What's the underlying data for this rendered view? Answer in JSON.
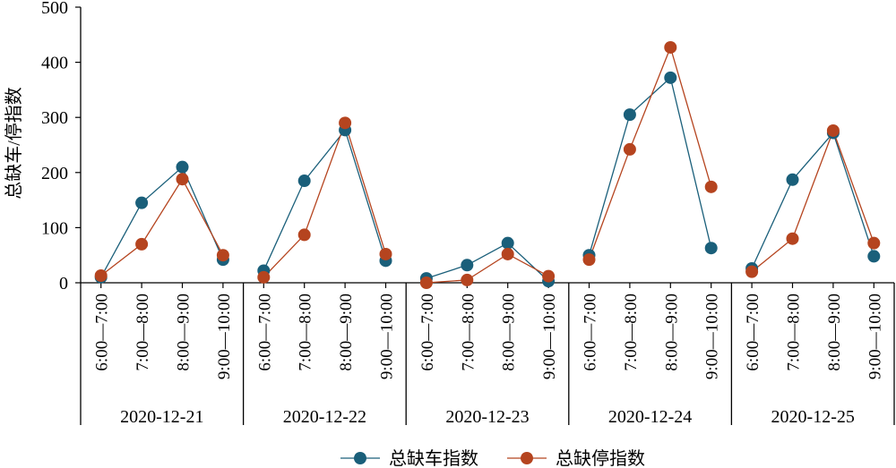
{
  "chart_data": {
    "type": "line",
    "ylabel": "总缺车/停指数",
    "ylim": [
      0,
      500
    ],
    "yticks": [
      0,
      100,
      200,
      300,
      400,
      500
    ],
    "grid": false,
    "legend_position": "bottom-center",
    "groups": [
      "2020-12-21",
      "2020-12-22",
      "2020-12-23",
      "2020-12-24",
      "2020-12-25"
    ],
    "time_slots": [
      "6:00—7:00",
      "7:00—8:00",
      "8:00—9:00",
      "9:00—10:00"
    ],
    "series": [
      {
        "name": "总缺车指数",
        "color": "#1a5f7a",
        "values": [
          [
            10,
            145,
            210,
            42
          ],
          [
            22,
            185,
            277,
            40
          ],
          [
            8,
            32,
            72,
            3
          ],
          [
            50,
            305,
            372,
            63
          ],
          [
            26,
            187,
            272,
            48
          ]
        ]
      },
      {
        "name": "总缺停指数",
        "color": "#b5441f",
        "values": [
          [
            13,
            70,
            188,
            50
          ],
          [
            10,
            87,
            290,
            52
          ],
          [
            0,
            5,
            52,
            12
          ],
          [
            42,
            242,
            427,
            174
          ],
          [
            20,
            80,
            276,
            72
          ]
        ]
      }
    ]
  }
}
